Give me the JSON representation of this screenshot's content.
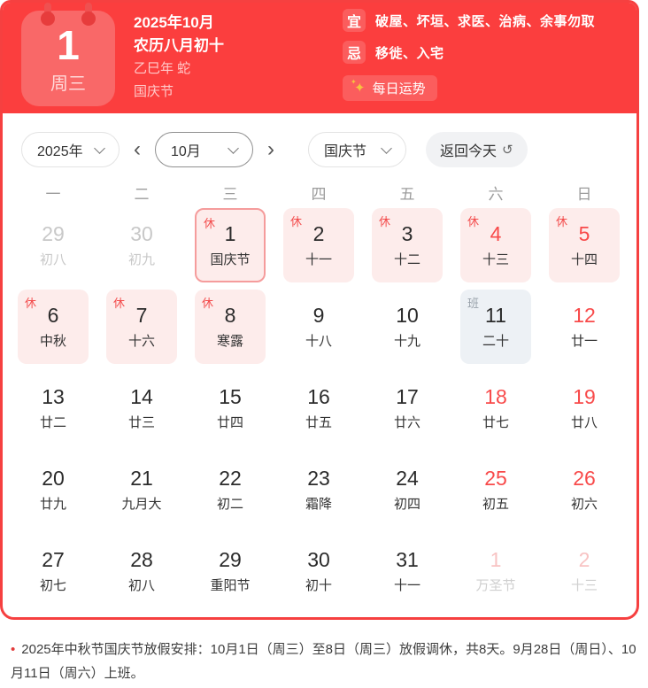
{
  "header": {
    "day_number": "1",
    "weekday": "周三",
    "date_line": "2025年10月",
    "lunar_line": "农历八月初十",
    "ganzhi_line": "乙巳年 蛇",
    "festival_line": "国庆节",
    "yi_label": "宜",
    "yi_text": "破屋、坏垣、求医、治病、余事勿取",
    "ji_label": "忌",
    "ji_text": "移徙、入宅",
    "fortune_icon": "✦",
    "fortune_label": "每日运势"
  },
  "toolbar": {
    "year_value": "2025年",
    "prev_icon": "‹",
    "month_value": "10月",
    "next_icon": "›",
    "festival_value": "国庆节",
    "today_label": "返回今天",
    "today_icon": "↺"
  },
  "calendar": {
    "weekdays": [
      "一",
      "二",
      "三",
      "四",
      "五",
      "六",
      "日"
    ],
    "days": [
      {
        "num": "29",
        "lunar": "初八",
        "badge": "",
        "cls": "dim"
      },
      {
        "num": "30",
        "lunar": "初九",
        "badge": "",
        "cls": "dim"
      },
      {
        "num": "1",
        "lunar": "国庆节",
        "badge": "休",
        "cls": "rest today"
      },
      {
        "num": "2",
        "lunar": "十一",
        "badge": "休",
        "cls": "rest"
      },
      {
        "num": "3",
        "lunar": "十二",
        "badge": "休",
        "cls": "rest"
      },
      {
        "num": "4",
        "lunar": "十三",
        "badge": "休",
        "cls": "rest weekend"
      },
      {
        "num": "5",
        "lunar": "十四",
        "badge": "休",
        "cls": "rest weekend"
      },
      {
        "num": "6",
        "lunar": "中秋",
        "badge": "休",
        "cls": "rest"
      },
      {
        "num": "7",
        "lunar": "十六",
        "badge": "休",
        "cls": "rest"
      },
      {
        "num": "8",
        "lunar": "寒露",
        "badge": "休",
        "cls": "rest"
      },
      {
        "num": "9",
        "lunar": "十八",
        "badge": "",
        "cls": ""
      },
      {
        "num": "10",
        "lunar": "十九",
        "badge": "",
        "cls": ""
      },
      {
        "num": "11",
        "lunar": "二十",
        "badge": "班",
        "cls": "work"
      },
      {
        "num": "12",
        "lunar": "廿一",
        "badge": "",
        "cls": "weekend"
      },
      {
        "num": "13",
        "lunar": "廿二",
        "badge": "",
        "cls": ""
      },
      {
        "num": "14",
        "lunar": "廿三",
        "badge": "",
        "cls": ""
      },
      {
        "num": "15",
        "lunar": "廿四",
        "badge": "",
        "cls": ""
      },
      {
        "num": "16",
        "lunar": "廿五",
        "badge": "",
        "cls": ""
      },
      {
        "num": "17",
        "lunar": "廿六",
        "badge": "",
        "cls": ""
      },
      {
        "num": "18",
        "lunar": "廿七",
        "badge": "",
        "cls": "weekend"
      },
      {
        "num": "19",
        "lunar": "廿八",
        "badge": "",
        "cls": "weekend"
      },
      {
        "num": "20",
        "lunar": "廿九",
        "badge": "",
        "cls": ""
      },
      {
        "num": "21",
        "lunar": "九月大",
        "badge": "",
        "cls": ""
      },
      {
        "num": "22",
        "lunar": "初二",
        "badge": "",
        "cls": ""
      },
      {
        "num": "23",
        "lunar": "霜降",
        "badge": "",
        "cls": ""
      },
      {
        "num": "24",
        "lunar": "初四",
        "badge": "",
        "cls": ""
      },
      {
        "num": "25",
        "lunar": "初五",
        "badge": "",
        "cls": "weekend"
      },
      {
        "num": "26",
        "lunar": "初六",
        "badge": "",
        "cls": "weekend"
      },
      {
        "num": "27",
        "lunar": "初七",
        "badge": "",
        "cls": ""
      },
      {
        "num": "28",
        "lunar": "初八",
        "badge": "",
        "cls": ""
      },
      {
        "num": "29",
        "lunar": "重阳节",
        "badge": "",
        "cls": ""
      },
      {
        "num": "30",
        "lunar": "初十",
        "badge": "",
        "cls": ""
      },
      {
        "num": "31",
        "lunar": "十一",
        "badge": "",
        "cls": ""
      },
      {
        "num": "1",
        "lunar": "万圣节",
        "badge": "",
        "cls": "next"
      },
      {
        "num": "2",
        "lunar": "十三",
        "badge": "",
        "cls": "next"
      }
    ]
  },
  "footer": {
    "note": "2025年中秋节国庆节放假安排：10月1日（周三）至8日（周三）放假调休，共8天。9月28日（周日）、10月11日（周六）上班。"
  },
  "colors": {
    "header_red": "#fb3e3e",
    "light_red_badge": "#fb5d5d",
    "date_card_red": "#f96868",
    "accent_red": "#f84a4a",
    "holiday_cell_bg": "#fdeceb",
    "workday_cell_bg": "#edf1f5",
    "selected_border": "#f59c9c",
    "sparkle_gold": "#f7c33f"
  }
}
